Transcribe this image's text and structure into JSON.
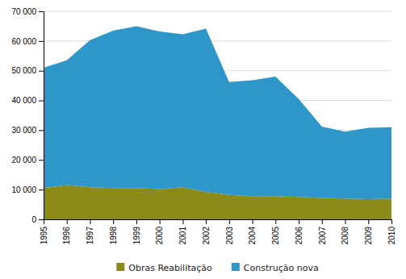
{
  "chart_data": {
    "type": "area",
    "stacked": true,
    "x": [
      1995,
      1996,
      1997,
      1998,
      1999,
      2000,
      2001,
      2002,
      2003,
      2004,
      2005,
      2006,
      2007,
      2008,
      2009,
      2010
    ],
    "series": [
      {
        "name": "Obras Reabilitação",
        "color": "#8B8B1A",
        "values": [
          10500,
          11500,
          10800,
          10500,
          10500,
          10200,
          10800,
          9200,
          8200,
          7800,
          7800,
          7500,
          7200,
          7000,
          6800,
          7000
        ]
      },
      {
        "name": "Construção nova",
        "color": "#2E96C8",
        "values": [
          40500,
          42000,
          49500,
          53000,
          54500,
          53000,
          51500,
          55000,
          38000,
          39000,
          40200,
          33000,
          24000,
          22500,
          24000,
          24000
        ]
      }
    ],
    "xlim": [
      1995,
      2010
    ],
    "xticks": [
      1995,
      1996,
      1997,
      1998,
      1999,
      2000,
      2001,
      2002,
      2003,
      2004,
      2005,
      2006,
      2007,
      2008,
      2009,
      2010
    ],
    "ylim": [
      0,
      70000
    ],
    "yticks": [
      0,
      {
        "value": 10000,
        "label": "10 000"
      },
      {
        "value": 20000,
        "label": "20 000"
      },
      {
        "value": 30000,
        "label": "30 000"
      },
      {
        "value": 40000,
        "label": "40 000"
      },
      {
        "value": 50000,
        "label": "50 000"
      },
      {
        "value": 60000,
        "label": "60 000"
      },
      {
        "value": 70000,
        "label": "70 000"
      }
    ],
    "grid": true,
    "legend": "bottom"
  }
}
